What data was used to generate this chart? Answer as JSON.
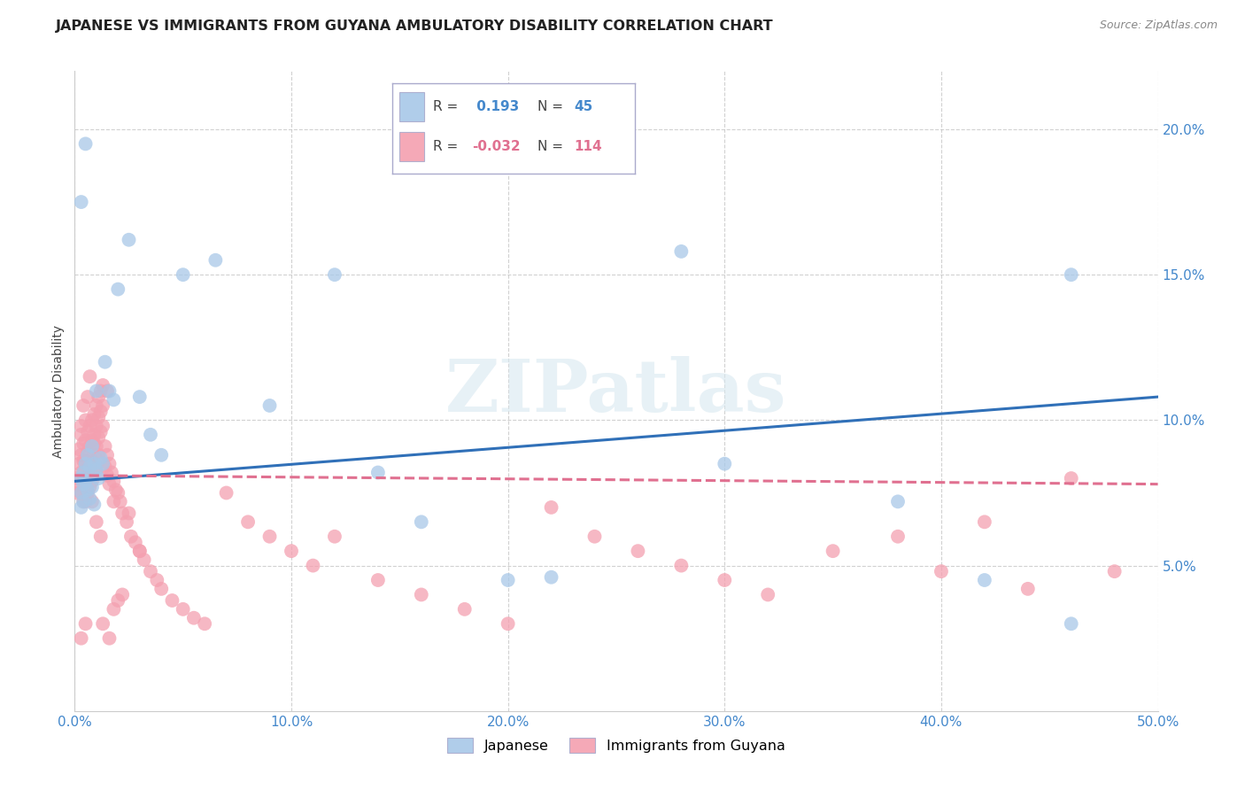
{
  "title": "JAPANESE VS IMMIGRANTS FROM GUYANA AMBULATORY DISABILITY CORRELATION CHART",
  "source": "Source: ZipAtlas.com",
  "ylabel": "Ambulatory Disability",
  "watermark": "ZIPatlas",
  "xlim": [
    0.0,
    0.5
  ],
  "ylim": [
    0.0,
    0.22
  ],
  "xticks": [
    0.0,
    0.1,
    0.2,
    0.3,
    0.4,
    0.5
  ],
  "yticks": [
    0.05,
    0.1,
    0.15,
    0.2
  ],
  "ytick_labels": [
    "5.0%",
    "10.0%",
    "15.0%",
    "20.0%"
  ],
  "xtick_labels": [
    "0.0%",
    "10.0%",
    "20.0%",
    "30.0%",
    "40.0%",
    "50.0%"
  ],
  "legend_r_japanese": " 0.193",
  "legend_n_japanese": "45",
  "legend_r_guyana": "-0.032",
  "legend_n_guyana": "114",
  "japanese_color": "#a8c8e8",
  "guyana_color": "#f4a0b0",
  "trendline_japanese_color": "#3070b8",
  "trendline_guyana_color": "#e07090",
  "tick_color": "#4488cc",
  "background_color": "#ffffff",
  "grid_color": "#cccccc",
  "title_fontsize": 11.5,
  "axis_label_fontsize": 10,
  "tick_fontsize": 11,
  "source_fontsize": 9,
  "legend_fontsize": 11,
  "jp_x": [
    0.003,
    0.003,
    0.003,
    0.003,
    0.004,
    0.004,
    0.004,
    0.005,
    0.005,
    0.005,
    0.006,
    0.006,
    0.007,
    0.007,
    0.008,
    0.008,
    0.009,
    0.009,
    0.01,
    0.01,
    0.011,
    0.012,
    0.013,
    0.014,
    0.016,
    0.018,
    0.02,
    0.025,
    0.03,
    0.035,
    0.04,
    0.05,
    0.065,
    0.09,
    0.12,
    0.14,
    0.16,
    0.2,
    0.22,
    0.28,
    0.3,
    0.38,
    0.42,
    0.46,
    0.46
  ],
  "jp_y": [
    0.175,
    0.08,
    0.075,
    0.07,
    0.082,
    0.078,
    0.072,
    0.195,
    0.085,
    0.079,
    0.088,
    0.076,
    0.084,
    0.073,
    0.091,
    0.077,
    0.085,
    0.071,
    0.11,
    0.083,
    0.08,
    0.087,
    0.085,
    0.12,
    0.11,
    0.107,
    0.145,
    0.162,
    0.108,
    0.095,
    0.088,
    0.15,
    0.155,
    0.105,
    0.15,
    0.082,
    0.065,
    0.045,
    0.046,
    0.158,
    0.085,
    0.072,
    0.045,
    0.15,
    0.03
  ],
  "gy_x": [
    0.001,
    0.001,
    0.002,
    0.002,
    0.002,
    0.003,
    0.003,
    0.003,
    0.003,
    0.004,
    0.004,
    0.004,
    0.004,
    0.005,
    0.005,
    0.005,
    0.005,
    0.005,
    0.006,
    0.006,
    0.006,
    0.006,
    0.007,
    0.007,
    0.007,
    0.007,
    0.008,
    0.008,
    0.008,
    0.008,
    0.009,
    0.009,
    0.009,
    0.009,
    0.01,
    0.01,
    0.01,
    0.01,
    0.011,
    0.011,
    0.011,
    0.012,
    0.012,
    0.012,
    0.013,
    0.013,
    0.013,
    0.014,
    0.014,
    0.015,
    0.015,
    0.016,
    0.016,
    0.017,
    0.018,
    0.018,
    0.019,
    0.02,
    0.021,
    0.022,
    0.024,
    0.026,
    0.028,
    0.03,
    0.032,
    0.035,
    0.038,
    0.04,
    0.045,
    0.05,
    0.055,
    0.06,
    0.07,
    0.08,
    0.09,
    0.1,
    0.11,
    0.12,
    0.14,
    0.16,
    0.18,
    0.2,
    0.22,
    0.24,
    0.26,
    0.28,
    0.3,
    0.32,
    0.35,
    0.38,
    0.4,
    0.42,
    0.44,
    0.46,
    0.48,
    0.02,
    0.025,
    0.03,
    0.005,
    0.003,
    0.008,
    0.01,
    0.012,
    0.015,
    0.007,
    0.006,
    0.004,
    0.003,
    0.009,
    0.011,
    0.013,
    0.016,
    0.018,
    0.022
  ],
  "gy_y": [
    0.08,
    0.075,
    0.09,
    0.085,
    0.078,
    0.095,
    0.088,
    0.082,
    0.075,
    0.092,
    0.086,
    0.079,
    0.072,
    0.1,
    0.093,
    0.086,
    0.079,
    0.072,
    0.096,
    0.089,
    0.082,
    0.075,
    0.098,
    0.091,
    0.084,
    0.077,
    0.1,
    0.093,
    0.086,
    0.079,
    0.102,
    0.095,
    0.088,
    0.081,
    0.105,
    0.098,
    0.091,
    0.084,
    0.108,
    0.101,
    0.094,
    0.11,
    0.103,
    0.096,
    0.112,
    0.105,
    0.098,
    0.091,
    0.084,
    0.088,
    0.081,
    0.085,
    0.078,
    0.082,
    0.079,
    0.072,
    0.076,
    0.075,
    0.072,
    0.068,
    0.065,
    0.06,
    0.058,
    0.055,
    0.052,
    0.048,
    0.045,
    0.042,
    0.038,
    0.035,
    0.032,
    0.03,
    0.075,
    0.065,
    0.06,
    0.055,
    0.05,
    0.06,
    0.045,
    0.04,
    0.035,
    0.03,
    0.07,
    0.06,
    0.055,
    0.05,
    0.045,
    0.04,
    0.055,
    0.06,
    0.048,
    0.065,
    0.042,
    0.08,
    0.048,
    0.038,
    0.068,
    0.055,
    0.03,
    0.025,
    0.072,
    0.065,
    0.06,
    0.11,
    0.115,
    0.108,
    0.105,
    0.098,
    0.092,
    0.088,
    0.03,
    0.025,
    0.035,
    0.04
  ],
  "jp_trend_x": [
    0.0,
    0.5
  ],
  "jp_trend_y": [
    0.079,
    0.108
  ],
  "gy_trend_x": [
    0.0,
    0.5
  ],
  "gy_trend_y": [
    0.081,
    0.078
  ]
}
